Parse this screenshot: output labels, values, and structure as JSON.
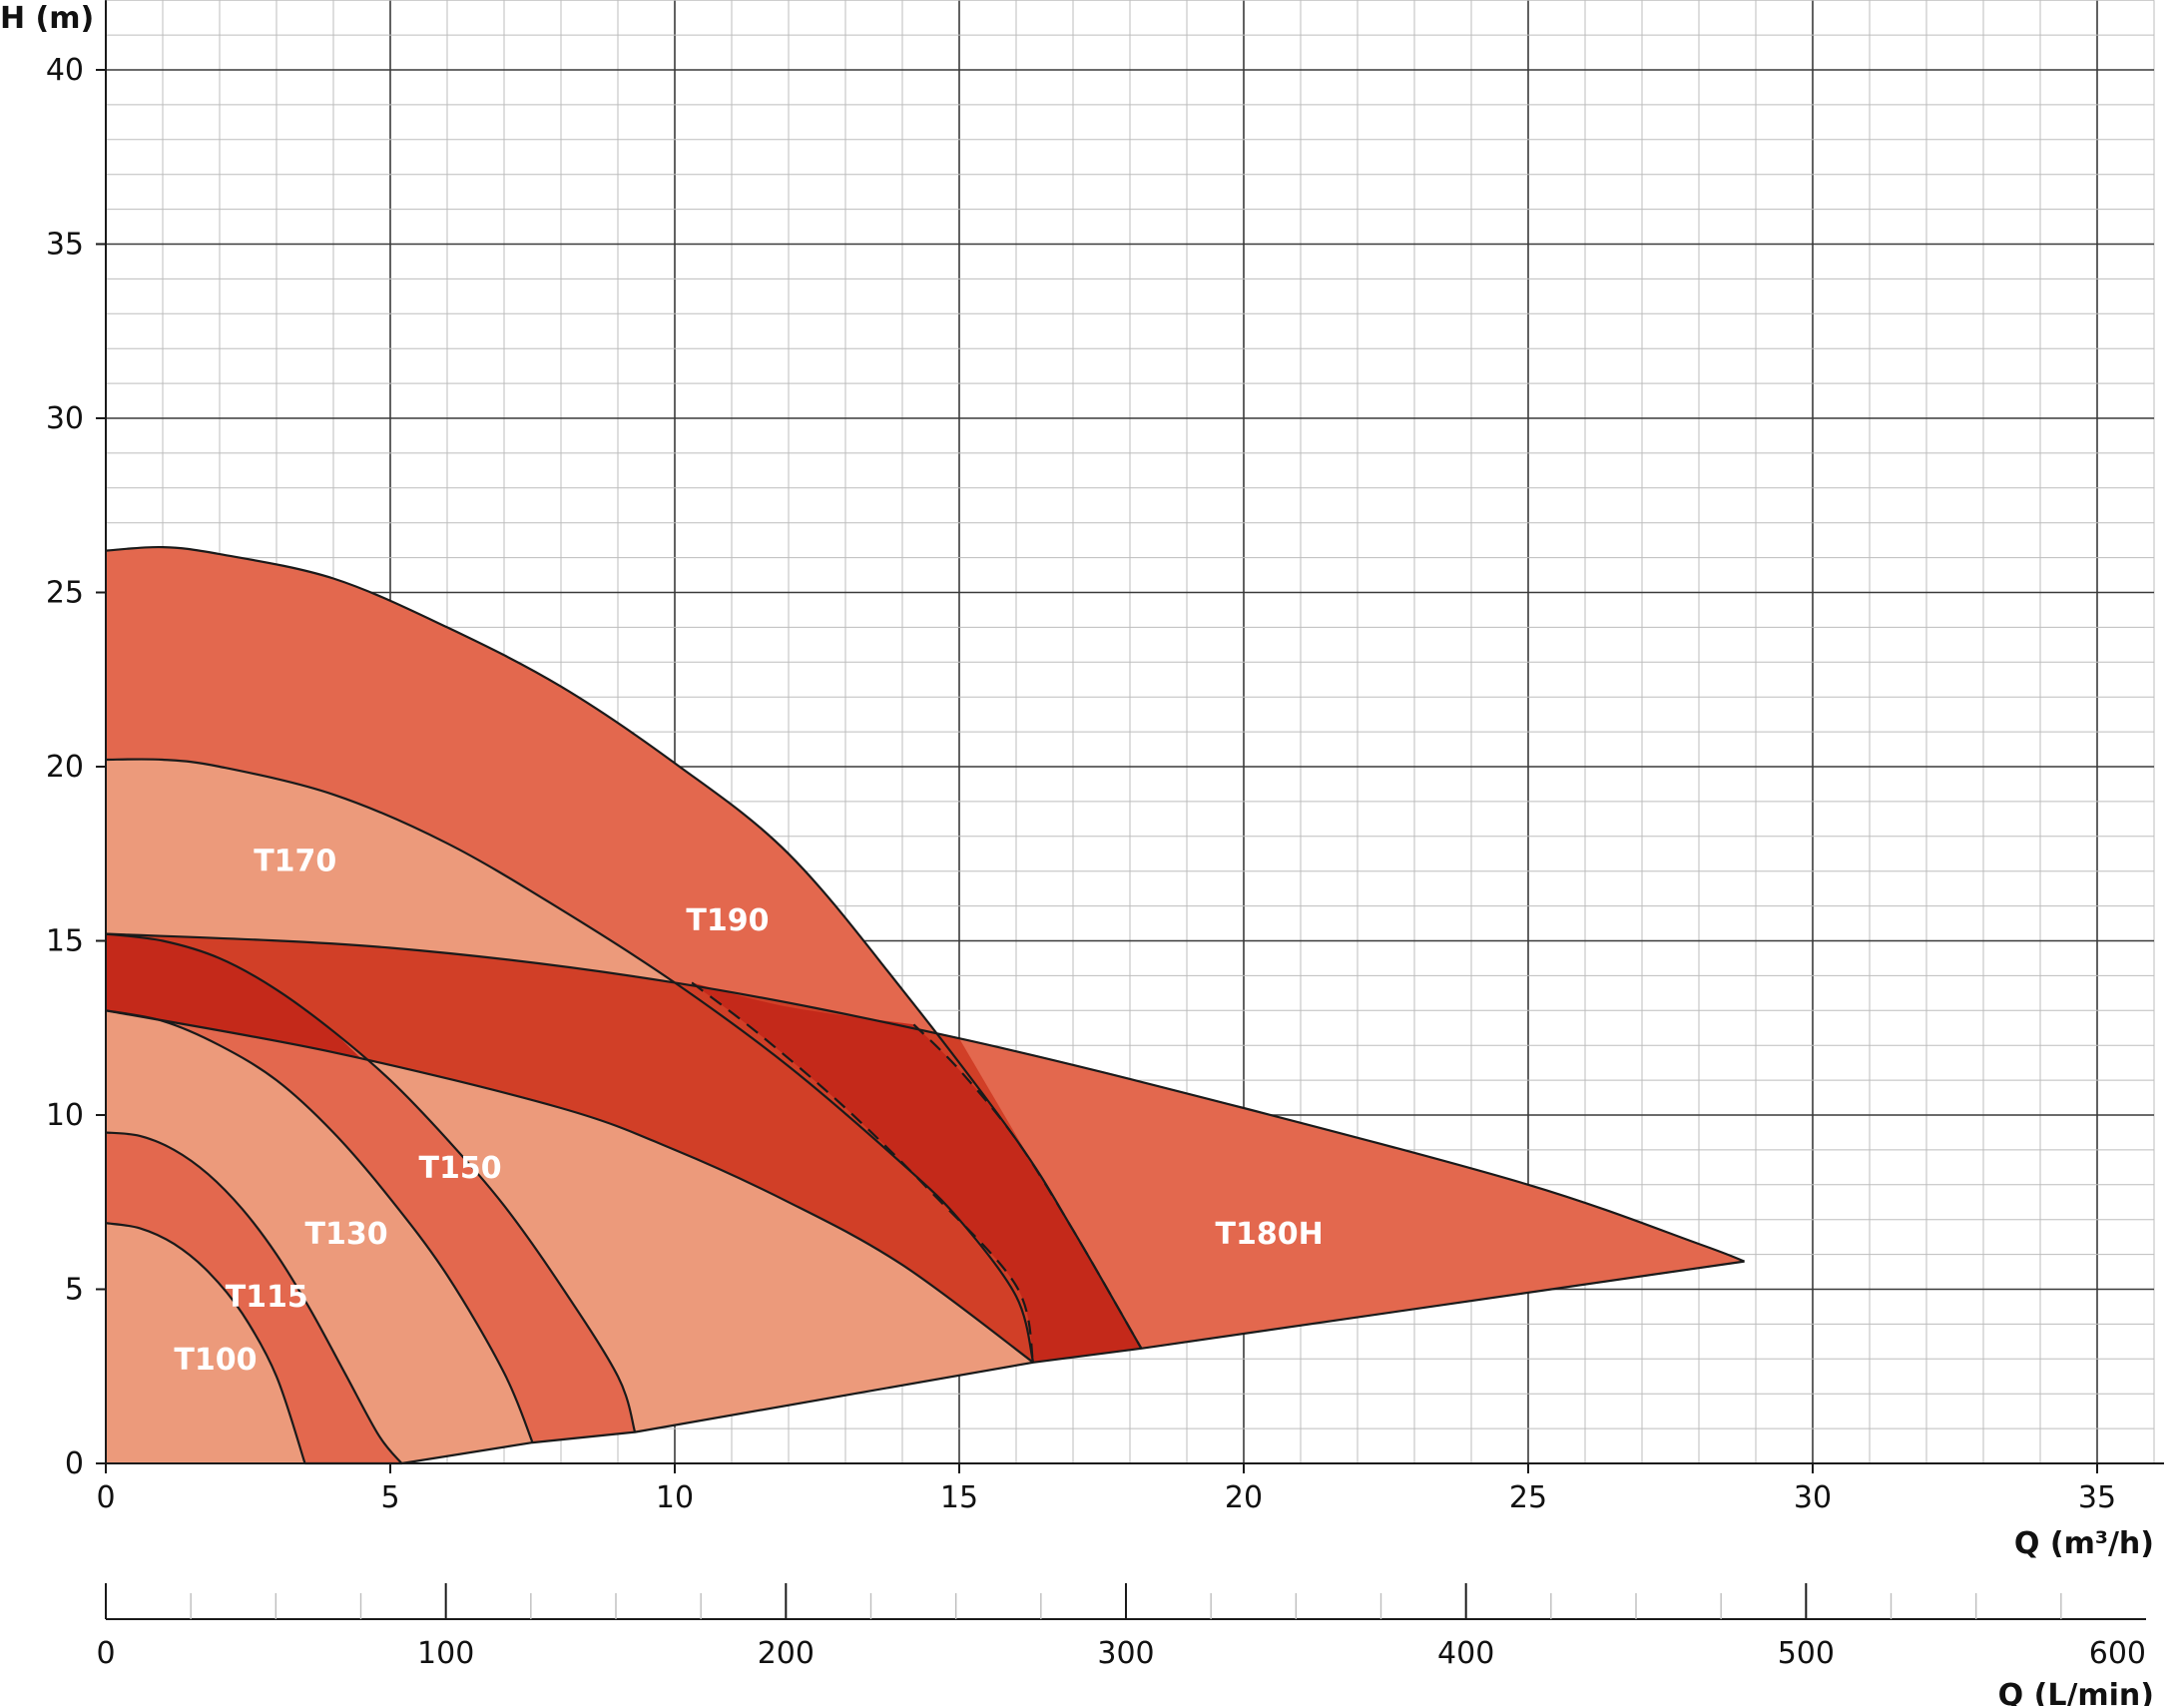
{
  "chart_data": {
    "type": "area",
    "title": "",
    "ylabel": "H (m)",
    "xlabel": "Q (m³/h)",
    "secondary_xlabel": "Q (L/min)",
    "xlim": [
      0,
      36
    ],
    "ylim": [
      0,
      42
    ],
    "secondary_xlim": [
      0,
      600
    ],
    "x_ticks": [
      "0",
      "5",
      "10",
      "15",
      "20",
      "25",
      "30",
      "35"
    ],
    "y_ticks": [
      "0",
      "5",
      "10",
      "15",
      "20",
      "25",
      "30",
      "35",
      "40"
    ],
    "secondary_x_ticks": [
      "0",
      "100",
      "200",
      "300",
      "400",
      "500",
      "600"
    ],
    "grid": true,
    "colors": {
      "light": "#ec9a7b",
      "medium": "#e3684e",
      "dark": "#d13f27",
      "darkest": "#c4291a",
      "line": "#1a1a1a",
      "grid_minor": "#bdbdbd",
      "grid_major": "#3a3a3a"
    },
    "series": [
      {
        "name": "T100",
        "label_at": [
          1.2,
          2.7
        ],
        "fill": "light",
        "curve": [
          [
            0,
            6.9
          ],
          [
            0.6,
            6.75
          ],
          [
            1.2,
            6.3
          ],
          [
            1.8,
            5.5
          ],
          [
            2.4,
            4.3
          ],
          [
            3.0,
            2.5
          ],
          [
            3.5,
            0
          ]
        ]
      },
      {
        "name": "T115",
        "label_at": [
          2.1,
          4.5
        ],
        "fill": "medium",
        "curve": [
          [
            0,
            9.5
          ],
          [
            0.6,
            9.4
          ],
          [
            1.2,
            9.0
          ],
          [
            1.8,
            8.3
          ],
          [
            2.4,
            7.3
          ],
          [
            3.0,
            6.0
          ],
          [
            3.6,
            4.4
          ],
          [
            4.2,
            2.6
          ],
          [
            4.8,
            0.8
          ],
          [
            5.2,
            0
          ]
        ]
      },
      {
        "name": "T130",
        "label_at": [
          3.5,
          6.3
        ],
        "fill": "light",
        "curve": [
          [
            0,
            13.0
          ],
          [
            1,
            12.7
          ],
          [
            2,
            12.0
          ],
          [
            3,
            11.0
          ],
          [
            4,
            9.5
          ],
          [
            5,
            7.6
          ],
          [
            6,
            5.4
          ],
          [
            7,
            2.6
          ],
          [
            7.5,
            0.6
          ]
        ]
      },
      {
        "name": "T150",
        "label_at": [
          5.5,
          8.2
        ],
        "fill": "medium",
        "curve": [
          [
            0,
            15.2
          ],
          [
            1,
            15.0
          ],
          [
            2,
            14.5
          ],
          [
            3,
            13.6
          ],
          [
            4,
            12.4
          ],
          [
            5,
            11.0
          ],
          [
            6,
            9.3
          ],
          [
            7,
            7.4
          ],
          [
            8,
            5.1
          ],
          [
            9,
            2.5
          ],
          [
            9.3,
            0.9
          ]
        ]
      },
      {
        "name": "T170",
        "label_at": [
          2.6,
          17.0
        ],
        "fill": "light",
        "curve": [
          [
            0,
            20.2
          ],
          [
            1,
            20.2
          ],
          [
            2,
            20.0
          ],
          [
            4,
            19.2
          ],
          [
            6,
            17.8
          ],
          [
            8,
            15.9
          ],
          [
            10,
            13.8
          ],
          [
            12,
            11.4
          ],
          [
            14,
            8.6
          ],
          [
            15,
            7.0
          ],
          [
            16,
            4.8
          ],
          [
            16.3,
            2.9
          ]
        ]
      },
      {
        "name": "T180H",
        "label_at": [
          19.5,
          6.3
        ],
        "fill": "medium",
        "curve": [
          [
            0,
            15.2
          ],
          [
            5,
            14.8
          ],
          [
            10,
            13.8
          ],
          [
            15,
            12.2
          ],
          [
            20,
            10.2
          ],
          [
            25,
            8.0
          ],
          [
            28,
            6.3
          ],
          [
            28.8,
            5.8
          ]
        ]
      },
      {
        "name": "T190",
        "label_at": [
          10.2,
          15.3
        ],
        "fill": "medium",
        "curve": [
          [
            0,
            26.2
          ],
          [
            1,
            26.3
          ],
          [
            2,
            26.1
          ],
          [
            4,
            25.4
          ],
          [
            6,
            24.0
          ],
          [
            8,
            22.3
          ],
          [
            10,
            20.1
          ],
          [
            12,
            17.5
          ],
          [
            14,
            13.6
          ],
          [
            16,
            9.3
          ],
          [
            17,
            6.7
          ],
          [
            18.2,
            3.3
          ]
        ]
      }
    ],
    "bottom_envelope": [
      [
        3.5,
        0
      ],
      [
        5.2,
        0
      ],
      [
        7.5,
        0.6
      ],
      [
        9.3,
        0.9
      ],
      [
        16.3,
        2.9
      ],
      [
        18.2,
        3.3
      ],
      [
        28.8,
        5.8
      ]
    ],
    "t180h_lower_curve": [
      [
        0,
        13.0
      ],
      [
        4,
        11.8
      ],
      [
        8,
        10.2
      ],
      [
        10,
        9.0
      ],
      [
        12,
        7.5
      ],
      [
        14,
        5.7
      ],
      [
        16.3,
        2.9
      ]
    ],
    "dashed_curve": [
      [
        10.3,
        13.8
      ],
      [
        11.5,
        12.3
      ],
      [
        13,
        10.2
      ],
      [
        14.5,
        7.8
      ],
      [
        16,
        5.1
      ],
      [
        16.3,
        2.9
      ]
    ]
  }
}
